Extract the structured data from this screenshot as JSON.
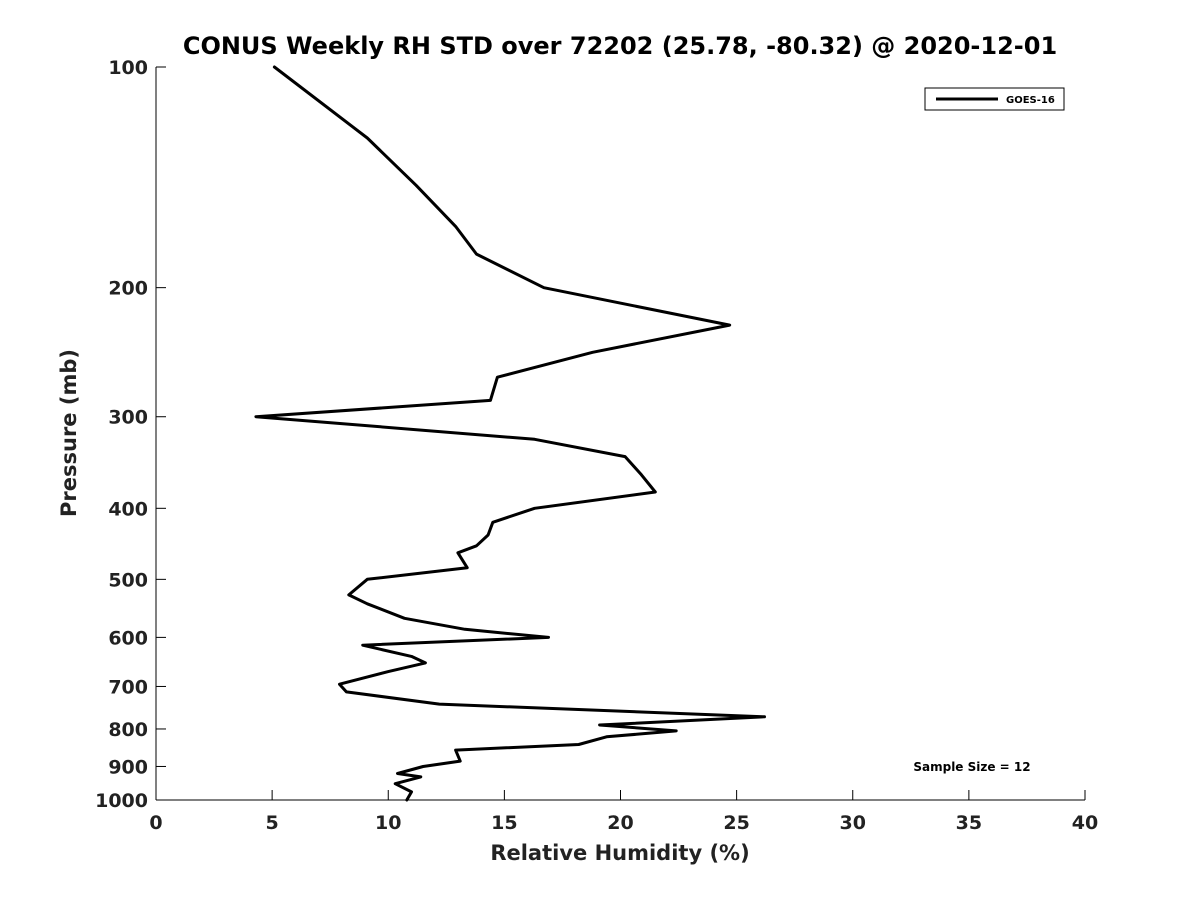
{
  "chart_data": {
    "type": "line",
    "title": "CONUS Weekly RH STD over 72202 (25.78, -80.32) @ 2020-12-01",
    "xlabel": "Relative Humidity (%)",
    "ylabel": "Pressure (mb)",
    "xlim": [
      0,
      40
    ],
    "ylim": [
      100,
      1000
    ],
    "yscale": "log",
    "y_reversed": true,
    "grid": false,
    "x_ticks": [
      0,
      5,
      10,
      15,
      20,
      25,
      30,
      35,
      40
    ],
    "y_ticks": [
      100,
      200,
      300,
      400,
      500,
      600,
      700,
      800,
      900,
      1000
    ],
    "legend_position": "top-right",
    "annotation": "Sample Size = 12",
    "series": [
      {
        "name": "GOES-16",
        "color": "#000000",
        "x": [
          5.1,
          9.1,
          11.2,
          12.9,
          13.8,
          16.7,
          24.7,
          18.8,
          14.7,
          14.4,
          4.3,
          16.3,
          20.2,
          20.9,
          21.5,
          16.3,
          14.5,
          14.3,
          13.8,
          13.0,
          13.4,
          9.1,
          8.3,
          9.1,
          10.7,
          13.3,
          16.9,
          8.9,
          11.0,
          11.6,
          10.0,
          7.9,
          8.2,
          12.2,
          26.2,
          19.1,
          22.4,
          19.4,
          18.2,
          12.9,
          13.1,
          11.5,
          10.4,
          11.4,
          10.3,
          11.0,
          10.8
        ],
        "y": [
          100,
          125,
          145,
          165,
          180,
          200,
          225,
          245,
          265,
          285,
          300,
          322,
          340,
          360,
          380,
          400,
          418,
          435,
          450,
          460,
          482,
          500,
          525,
          540,
          565,
          585,
          600,
          615,
          637,
          650,
          668,
          695,
          712,
          740,
          770,
          790,
          805,
          820,
          840,
          855,
          885,
          900,
          920,
          930,
          950,
          975,
          1000
        ]
      }
    ]
  }
}
